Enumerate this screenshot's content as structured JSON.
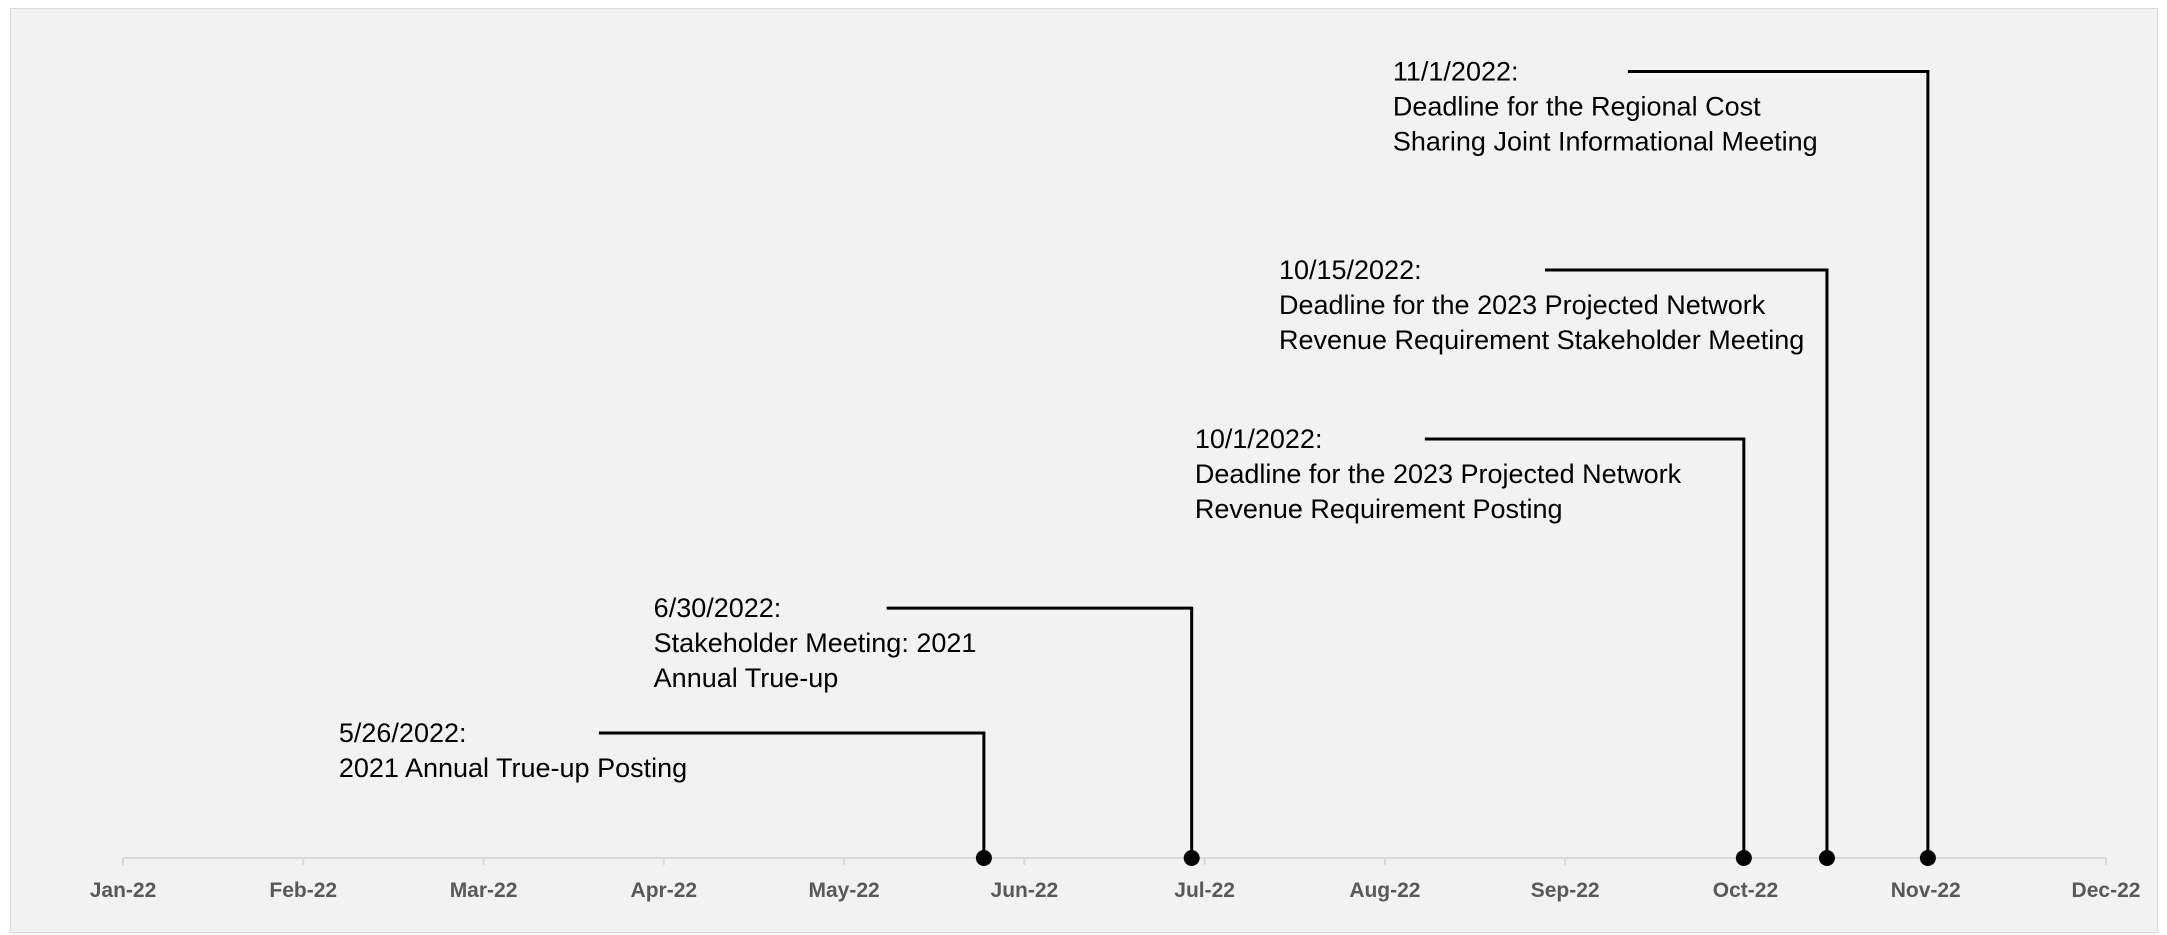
{
  "chart_data": {
    "type": "timeline",
    "title": "",
    "xlabel": "",
    "ylabel": "",
    "x_axis": {
      "ticks": [
        "Jan-22",
        "Feb-22",
        "Mar-22",
        "Apr-22",
        "May-22",
        "Jun-22",
        "Jul-22",
        "Aug-22",
        "Sep-22",
        "Oct-22",
        "Nov-22",
        "Dec-22"
      ],
      "range": [
        "2022-01-01",
        "2022-12-01"
      ]
    },
    "grid": false,
    "legend": "none",
    "colors": {
      "line": "#000000",
      "axis": "#d9d9d9",
      "tick_label": "#595959",
      "background": "#f2f2f2"
    },
    "events": [
      {
        "date": "2022-05-26",
        "height": 17,
        "lines": [
          "5/26/2022:",
          "2021 Annual True-up Posting"
        ]
      },
      {
        "date": "2022-06-30",
        "height": 34,
        "lines": [
          "6/30/2022:",
          "Stakeholder Meeting: 2021",
          "Annual True-up"
        ]
      },
      {
        "date": "2022-10-01",
        "height": 57,
        "lines": [
          "10/1/2022:",
          "Deadline for the 2023 Projected Network",
          "Revenue Requirement Posting"
        ]
      },
      {
        "date": "2022-10-15",
        "height": 80,
        "lines": [
          "10/15/2022:",
          "Deadline for the 2023 Projected Network",
          "Revenue Requirement Stakeholder Meeting"
        ]
      },
      {
        "date": "2022-11-01",
        "height": 107,
        "lines": [
          "11/1/2022:",
          "Deadline for the Regional Cost",
          "Sharing Joint Informational Meeting"
        ]
      }
    ]
  }
}
